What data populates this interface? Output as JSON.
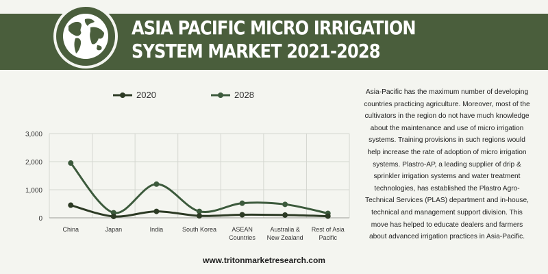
{
  "header": {
    "title_line1": "ASIA PACIFIC MICRO IRRIGATION",
    "title_line2": "SYSTEM MARKET 2021-2028"
  },
  "colors": {
    "banner": "#4a5e3c",
    "series_2020": "#2c3a24",
    "series_2028": "#3c5a3c"
  },
  "chart_data": {
    "type": "line",
    "smooth": true,
    "categories": [
      "China",
      "Japan",
      "India",
      "South Korea",
      "ASEAN Countries",
      "Australia & New Zealand",
      "Rest of Asia Pacific"
    ],
    "category_lines": [
      [
        "China"
      ],
      [
        "Japan"
      ],
      [
        "India"
      ],
      [
        "South Korea"
      ],
      [
        "ASEAN",
        "Countries"
      ],
      [
        "Australia &",
        "New Zealand"
      ],
      [
        "Rest of Asia",
        "Pacific"
      ]
    ],
    "series": [
      {
        "name": "2020",
        "values": [
          450,
          50,
          230,
          70,
          110,
          100,
          60
        ]
      },
      {
        "name": "2028",
        "values": [
          1950,
          180,
          1200,
          230,
          520,
          480,
          160
        ]
      }
    ],
    "ylim": [
      0,
      3000
    ],
    "yticks": [
      0,
      1000,
      2000,
      3000
    ],
    "ytick_labels": [
      "0",
      "1,000",
      "2,000",
      "3,000"
    ],
    "grid": true,
    "legend_position": "top-left"
  },
  "description": "Asia-Pacific has the maximum number of developing countries practicing agriculture. Moreover, most of the cultivators in the region do not have much knowledge about the maintenance and use of micro irrigation systems. Training provisions in such regions would help increase the rate of adoption of micro irrigation systems. Plastro-AP, a leading supplier of drip & sprinkler irrigation systems and water treatment technologies, has established the Plastro Agro-Technical Services (PLAS) department and in-house, technical and management support division. This move has helped to educate dealers and farmers about advanced irrigation practices in Asia-Pacific.",
  "footer": {
    "url": "www.tritonmarketresearch.com"
  }
}
